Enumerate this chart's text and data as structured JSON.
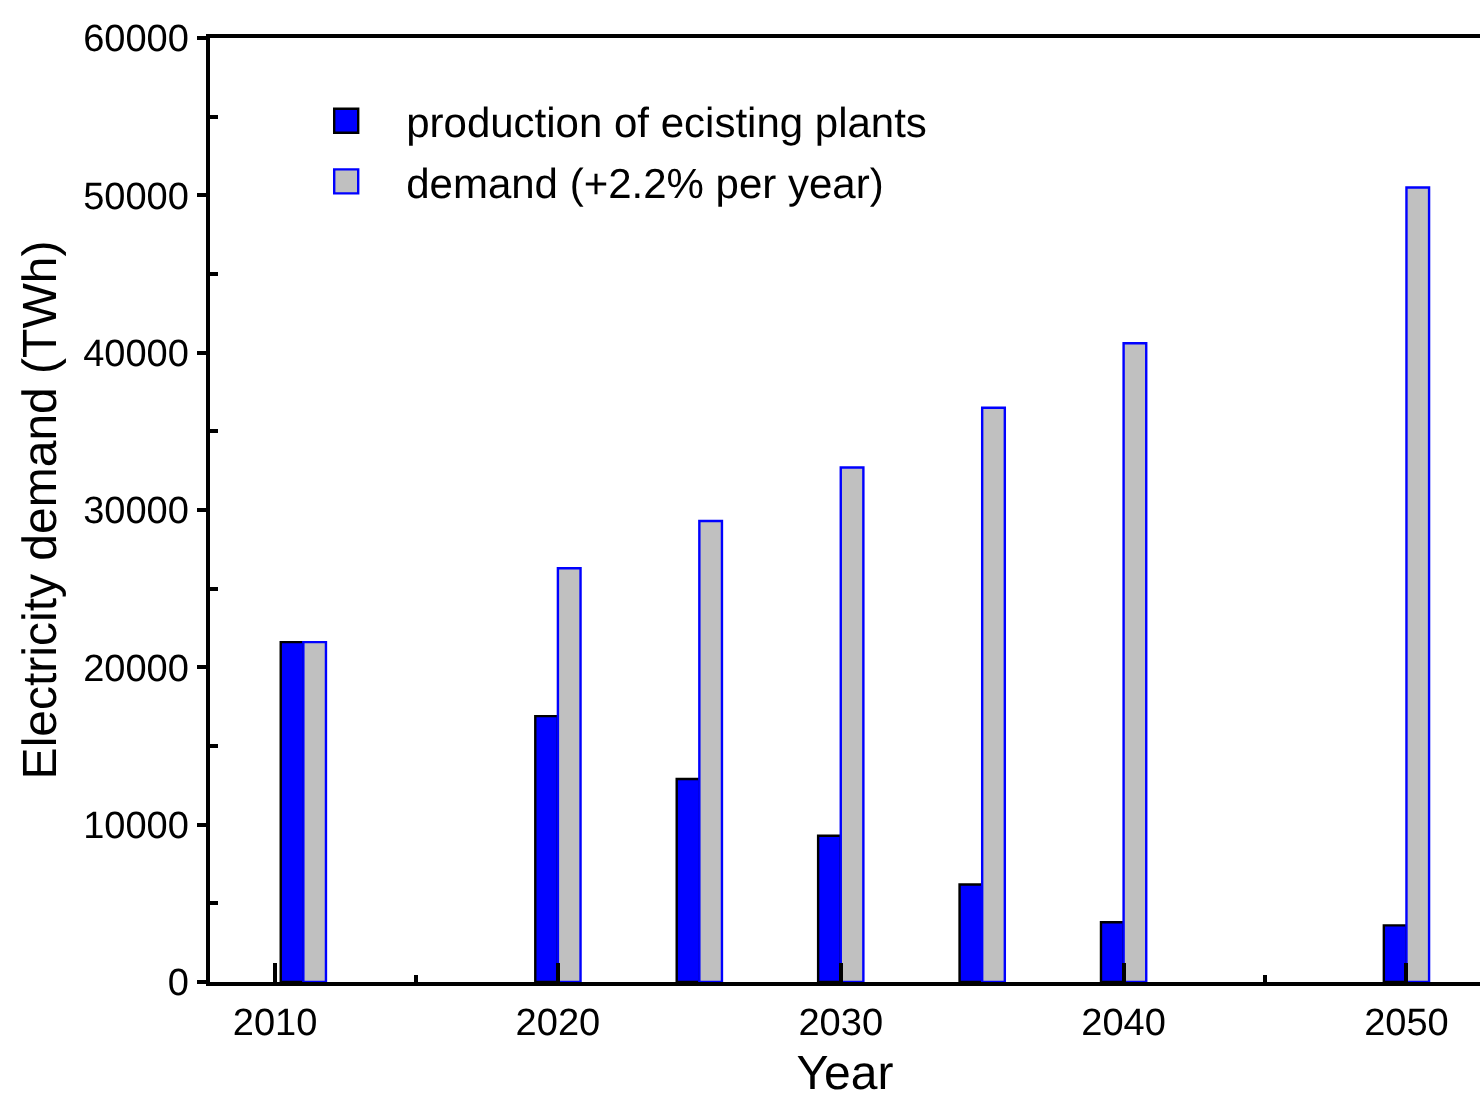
{
  "chart_data": {
    "type": "bar",
    "xlabel": "Year",
    "ylabel": "Electricity demand (TWh)",
    "x": [
      2011,
      2020,
      2025,
      2030,
      2035,
      2040,
      2050
    ],
    "series": [
      {
        "name": "production of ecisting plants",
        "color": "#0000ff",
        "values": [
          21600,
          16900,
          12900,
          9300,
          6200,
          3800,
          3600
        ]
      },
      {
        "name": "demand (+2.2% per year)",
        "color": "#c0c0c0",
        "values": [
          21600,
          26300,
          29300,
          32700,
          36500,
          40600,
          50500
        ]
      }
    ],
    "xlim": [
      2007.7,
      2052.6
    ],
    "ylim": [
      0,
      60000
    ],
    "xticks": [
      2010,
      {
        "value": 2015,
        "label": null
      },
      2020,
      2030,
      2040,
      {
        "value": 2045,
        "label": null
      },
      2050
    ],
    "yticks": [
      0,
      {
        "value": 5000,
        "label": null
      },
      10000,
      {
        "value": 15000,
        "label": null
      },
      20000,
      {
        "value": 25000,
        "label": null
      },
      30000,
      {
        "value": 35000,
        "label": null
      },
      40000,
      {
        "value": 45000,
        "label": null
      },
      50000,
      {
        "value": 55000,
        "label": null
      },
      60000
    ],
    "legend": "top left",
    "grid": false
  }
}
